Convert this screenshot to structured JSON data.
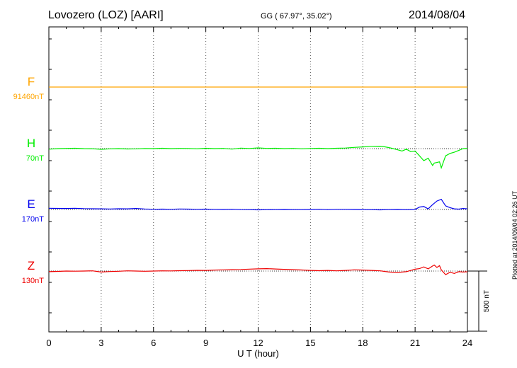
{
  "header": {
    "station": "Lovozero (LOZ)  [AARI]",
    "coords": "GG ( 67.97°,  35.02°)",
    "date": "2014/08/04"
  },
  "plotted_note": "Plotted at 2014/09/04 02:26 UT",
  "scale_label": "500 nT",
  "colors": {
    "F": "#ffa500",
    "H": "#00ee00",
    "E": "#0000ee",
    "Z": "#ee0000",
    "axis": "#000000"
  },
  "chart_data": {
    "type": "line",
    "xlabel": "U T (hour)",
    "xlim": [
      0,
      24
    ],
    "xticks": [
      "0",
      "3",
      "6",
      "9",
      "12",
      "15",
      "18",
      "21",
      "24"
    ],
    "grid": true,
    "units": "nT",
    "scale_bar_nT": 500,
    "series": [
      {
        "name": "F",
        "offset_label": "91460nT",
        "x": [
          0,
          24
        ],
        "y": [
          0,
          0
        ]
      },
      {
        "name": "H",
        "offset_label": "70nT",
        "x": [
          0,
          0.5,
          1,
          1.5,
          2,
          2.5,
          3,
          3.5,
          4,
          4.5,
          5,
          5.5,
          6,
          6.5,
          7,
          7.5,
          8,
          8.5,
          9,
          9.5,
          10,
          10.5,
          11,
          11.5,
          12,
          12.5,
          13,
          13.5,
          14,
          14.5,
          15,
          15.5,
          16,
          16.5,
          17,
          17.5,
          18,
          18.5,
          19,
          19.25,
          19.5,
          19.75,
          20,
          20.25,
          20.5,
          20.75,
          21,
          21.25,
          21.5,
          21.75,
          22,
          22.1,
          22.25,
          22.4,
          22.5,
          22.75,
          23,
          23.25,
          23.5,
          23.75,
          24
        ],
        "y": [
          -5,
          0,
          2,
          3,
          0,
          -1,
          -6,
          -2,
          0,
          -3,
          -2,
          1,
          0,
          3,
          0,
          2,
          1,
          -1,
          3,
          0,
          2,
          -4,
          4,
          1,
          6,
          2,
          3,
          0,
          2,
          -1,
          1,
          3,
          0,
          3,
          5,
          10,
          14,
          19,
          20,
          15,
          8,
          0,
          -10,
          -20,
          -5,
          -25,
          -20,
          -60,
          -100,
          -80,
          -140,
          -120,
          -115,
          -110,
          -160,
          -60,
          -40,
          -30,
          -15,
          0,
          2
        ]
      },
      {
        "name": "E",
        "offset_label": "170nT",
        "x": [
          0,
          0.5,
          1,
          1.5,
          2,
          2.5,
          3,
          3.5,
          4,
          4.5,
          5,
          5.5,
          6,
          6.5,
          7,
          7.5,
          8,
          8.5,
          9,
          9.5,
          10,
          10.5,
          11,
          11.5,
          12,
          12.5,
          13,
          13.5,
          14,
          14.5,
          15,
          15.5,
          16,
          16.5,
          17,
          17.5,
          18,
          18.5,
          19,
          19.5,
          20,
          20.5,
          21,
          21.25,
          21.5,
          21.75,
          22,
          22.25,
          22.5,
          22.75,
          23,
          23.25,
          23.5,
          23.75,
          24
        ],
        "y": [
          10,
          9,
          8,
          10,
          7,
          6,
          5,
          4,
          6,
          5,
          8,
          4,
          2,
          3,
          2,
          4,
          3,
          2,
          3,
          1,
          0,
          2,
          -1,
          -2,
          -3,
          -2,
          -1,
          0,
          -1,
          -1,
          0,
          2,
          -1,
          1,
          1,
          0,
          -1,
          -2,
          -3,
          -1,
          0,
          -2,
          0,
          20,
          25,
          5,
          40,
          70,
          85,
          30,
          15,
          5,
          3,
          8,
          5
        ]
      },
      {
        "name": "Z",
        "offset_label": "130nT",
        "x": [
          0,
          0.5,
          1,
          1.5,
          2,
          2.5,
          3,
          3.5,
          4,
          4.5,
          5,
          5.5,
          6,
          6.5,
          7,
          7.5,
          8,
          8.5,
          9,
          9.5,
          10,
          10.5,
          11,
          11.5,
          12,
          12.5,
          13,
          13.5,
          14,
          14.5,
          15,
          15.5,
          16,
          16.5,
          17,
          17.5,
          18,
          18.5,
          19,
          19.5,
          20,
          20.5,
          21,
          21.25,
          21.5,
          21.75,
          22,
          22.1,
          22.25,
          22.4,
          22.5,
          22.75,
          23,
          23.25,
          23.5,
          23.75,
          24
        ],
        "y": [
          -5,
          -3,
          0,
          -1,
          0,
          2,
          -8,
          -4,
          -2,
          2,
          0,
          -2,
          0,
          2,
          1,
          3,
          4,
          6,
          5,
          8,
          10,
          12,
          13,
          16,
          18,
          20,
          17,
          14,
          12,
          9,
          5,
          3,
          5,
          2,
          5,
          10,
          8,
          5,
          2,
          -8,
          -12,
          -5,
          15,
          20,
          35,
          18,
          42,
          50,
          30,
          45,
          10,
          -30,
          -10,
          -20,
          -5,
          -8,
          -6
        ]
      }
    ]
  }
}
